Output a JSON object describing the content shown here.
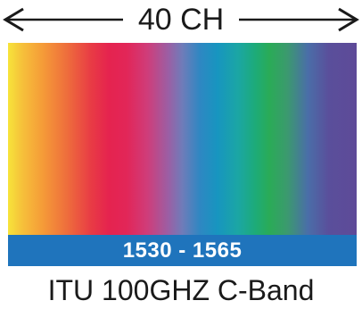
{
  "header": {
    "channels_label": "40 CH"
  },
  "spectrum": {
    "range_label": "1530 - 1565",
    "range_bar_color": "#1f74bc"
  },
  "footer": {
    "band_label": "ITU 100GHZ C-Band"
  },
  "icons": {
    "left": "arrow-left-icon",
    "right": "arrow-right-icon"
  }
}
